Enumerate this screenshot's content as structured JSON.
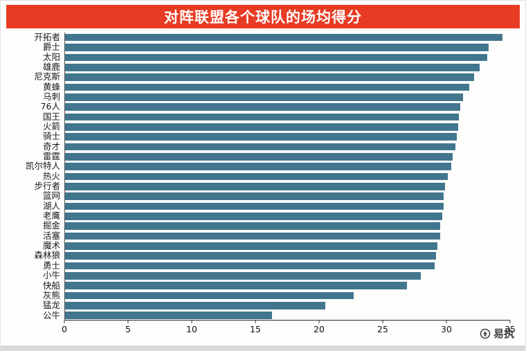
{
  "title": "对阵联盟各个球队的场均得分",
  "watermark": {
    "label": "易执"
  },
  "colors": {
    "banner": "#e73b23",
    "bar": "#41768e",
    "axis": "#2b2b2b",
    "bottom_strip": "#d9d9d9"
  },
  "chart_data": {
    "type": "bar",
    "orientation": "horizontal",
    "title": "对阵联盟各个球队的场均得分",
    "xlabel": "",
    "ylabel": "",
    "xlim": [
      0,
      35
    ],
    "x_ticks": [
      0,
      5,
      10,
      15,
      20,
      25,
      30,
      35
    ],
    "grid": false,
    "legend": false,
    "bar_color": "#41768e",
    "categories": [
      "开拓者",
      "爵士",
      "太阳",
      "雄鹿",
      "尼克斯",
      "黄蜂",
      "马刺",
      "76人",
      "国王",
      "火箭",
      "骑士",
      "奇才",
      "雷霆",
      "凯尔特人",
      "热火",
      "步行者",
      "篮网",
      "湖人",
      "老鹰",
      "掘金",
      "活塞",
      "魔术",
      "森林狼",
      "勇士",
      "小牛",
      "快船",
      "灰熊",
      "猛龙",
      "公牛"
    ],
    "values": [
      34.4,
      33.3,
      33.2,
      32.6,
      32.2,
      31.8,
      31.3,
      31.1,
      31.0,
      30.9,
      30.8,
      30.7,
      30.5,
      30.4,
      30.1,
      29.9,
      29.8,
      29.8,
      29.7,
      29.5,
      29.5,
      29.3,
      29.2,
      29.1,
      28.0,
      26.9,
      22.7,
      20.5,
      16.3
    ]
  }
}
